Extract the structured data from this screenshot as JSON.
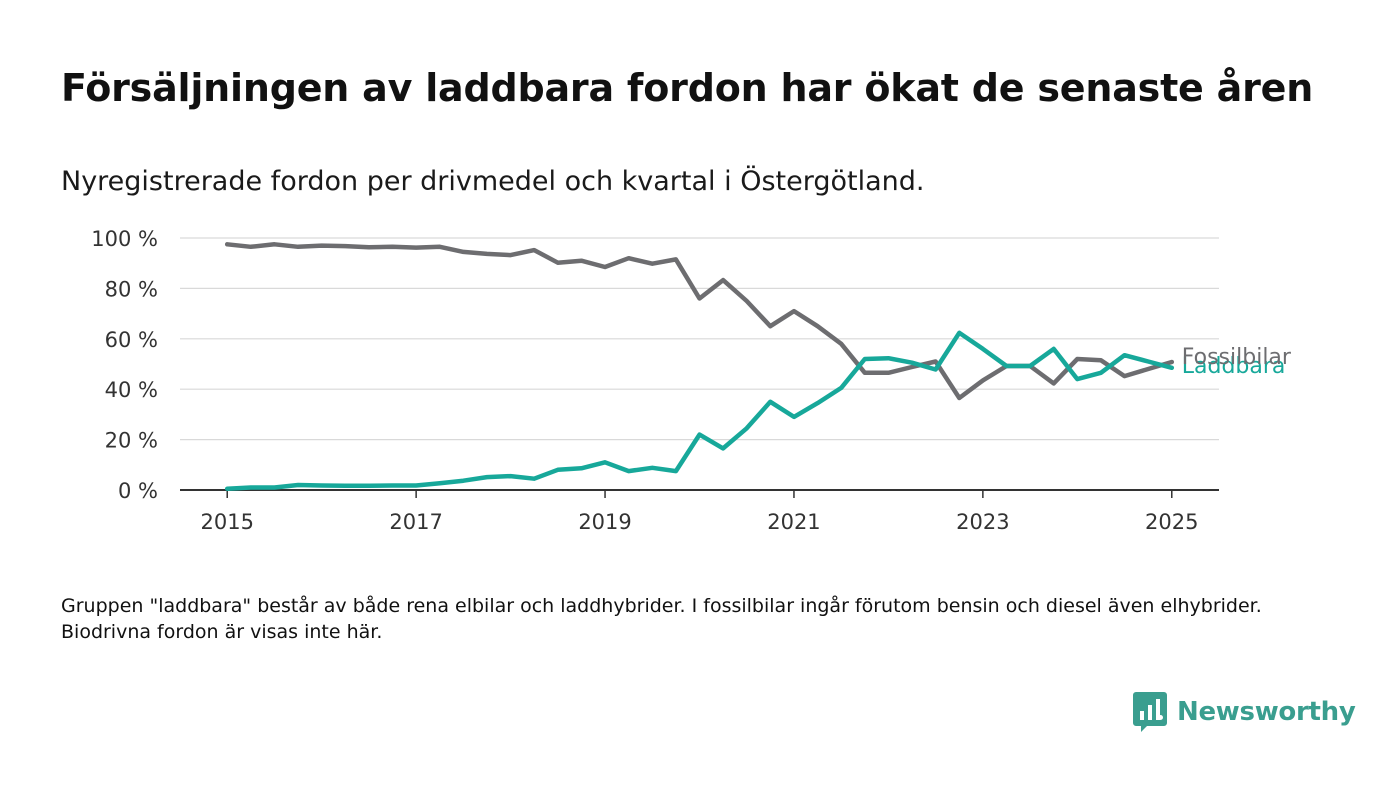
{
  "chart_data": {
    "type": "line",
    "title": "Försäljningen av laddbara fordon har ökat de senaste åren",
    "subtitle": "Nyregistrerade fordon per drivmedel och kvartal i Östergötland.",
    "x_tick_labels": [
      "2015",
      "2017",
      "2019",
      "2021",
      "2023",
      "2025"
    ],
    "x_ticks": [
      2015,
      2017,
      2019,
      2021,
      2023,
      2025
    ],
    "y_tick_labels": [
      "0 %",
      "20 %",
      "40 %",
      "60 %",
      "80 %",
      "100 %"
    ],
    "y_ticks": [
      0,
      20,
      40,
      60,
      80,
      100
    ],
    "xlim": [
      2014.5,
      2025.5
    ],
    "ylim": [
      0,
      100
    ],
    "grid": true,
    "x": [
      2015.0,
      2015.25,
      2015.5,
      2015.75,
      2016.0,
      2016.25,
      2016.5,
      2016.75,
      2017.0,
      2017.25,
      2017.5,
      2017.75,
      2018.0,
      2018.25,
      2018.5,
      2018.75,
      2019.0,
      2019.25,
      2019.5,
      2019.75,
      2020.0,
      2020.25,
      2020.5,
      2020.75,
      2021.0,
      2021.25,
      2021.5,
      2021.75,
      2022.0,
      2022.25,
      2022.5,
      2022.75,
      2023.0,
      2023.25,
      2023.5,
      2023.75,
      2024.0,
      2024.25,
      2024.5,
      2024.75,
      2025.0
    ],
    "series": [
      {
        "name": "Fossilbilar",
        "color": "#6d6d70",
        "values": [
          97.5,
          96.5,
          97.5,
          96.5,
          97,
          96.8,
          96.3,
          96.5,
          96.2,
          96.5,
          94.5,
          93.7,
          93.2,
          95.2,
          90.2,
          91,
          88.5,
          92,
          89.8,
          91.5,
          76,
          83.3,
          75,
          65,
          71,
          65,
          58,
          46.5,
          46.5,
          48.8,
          51,
          36.5,
          43.5,
          49.2,
          49.2,
          42.3,
          52,
          51.5,
          45.2,
          48,
          50.8
        ]
      },
      {
        "name": "Laddbara",
        "color": "#17a89a",
        "values": [
          0.5,
          1,
          1,
          2,
          1.8,
          1.7,
          1.7,
          1.8,
          1.8,
          2.7,
          3.7,
          5.1,
          5.5,
          4.5,
          8,
          8.6,
          11,
          7.5,
          8.8,
          7.5,
          22,
          16.5,
          24.5,
          35,
          29,
          34.5,
          40.5,
          52,
          52.3,
          50.5,
          47.8,
          62.4,
          56,
          49.2,
          49.2,
          56,
          44,
          46.5,
          53.5,
          51,
          48.5
        ]
      }
    ]
  },
  "footnote": "Gruppen \"laddbara\" består av både rena elbilar och laddhybrider. I fossilbilar ingår förutom bensin och diesel även elhybrider. Biodrivna fordon är visas inte här.",
  "brand": {
    "name": "Newsworthy",
    "logo_icon": "bar-chart-speech-bubble-icon",
    "color": "#3a9e8f"
  }
}
